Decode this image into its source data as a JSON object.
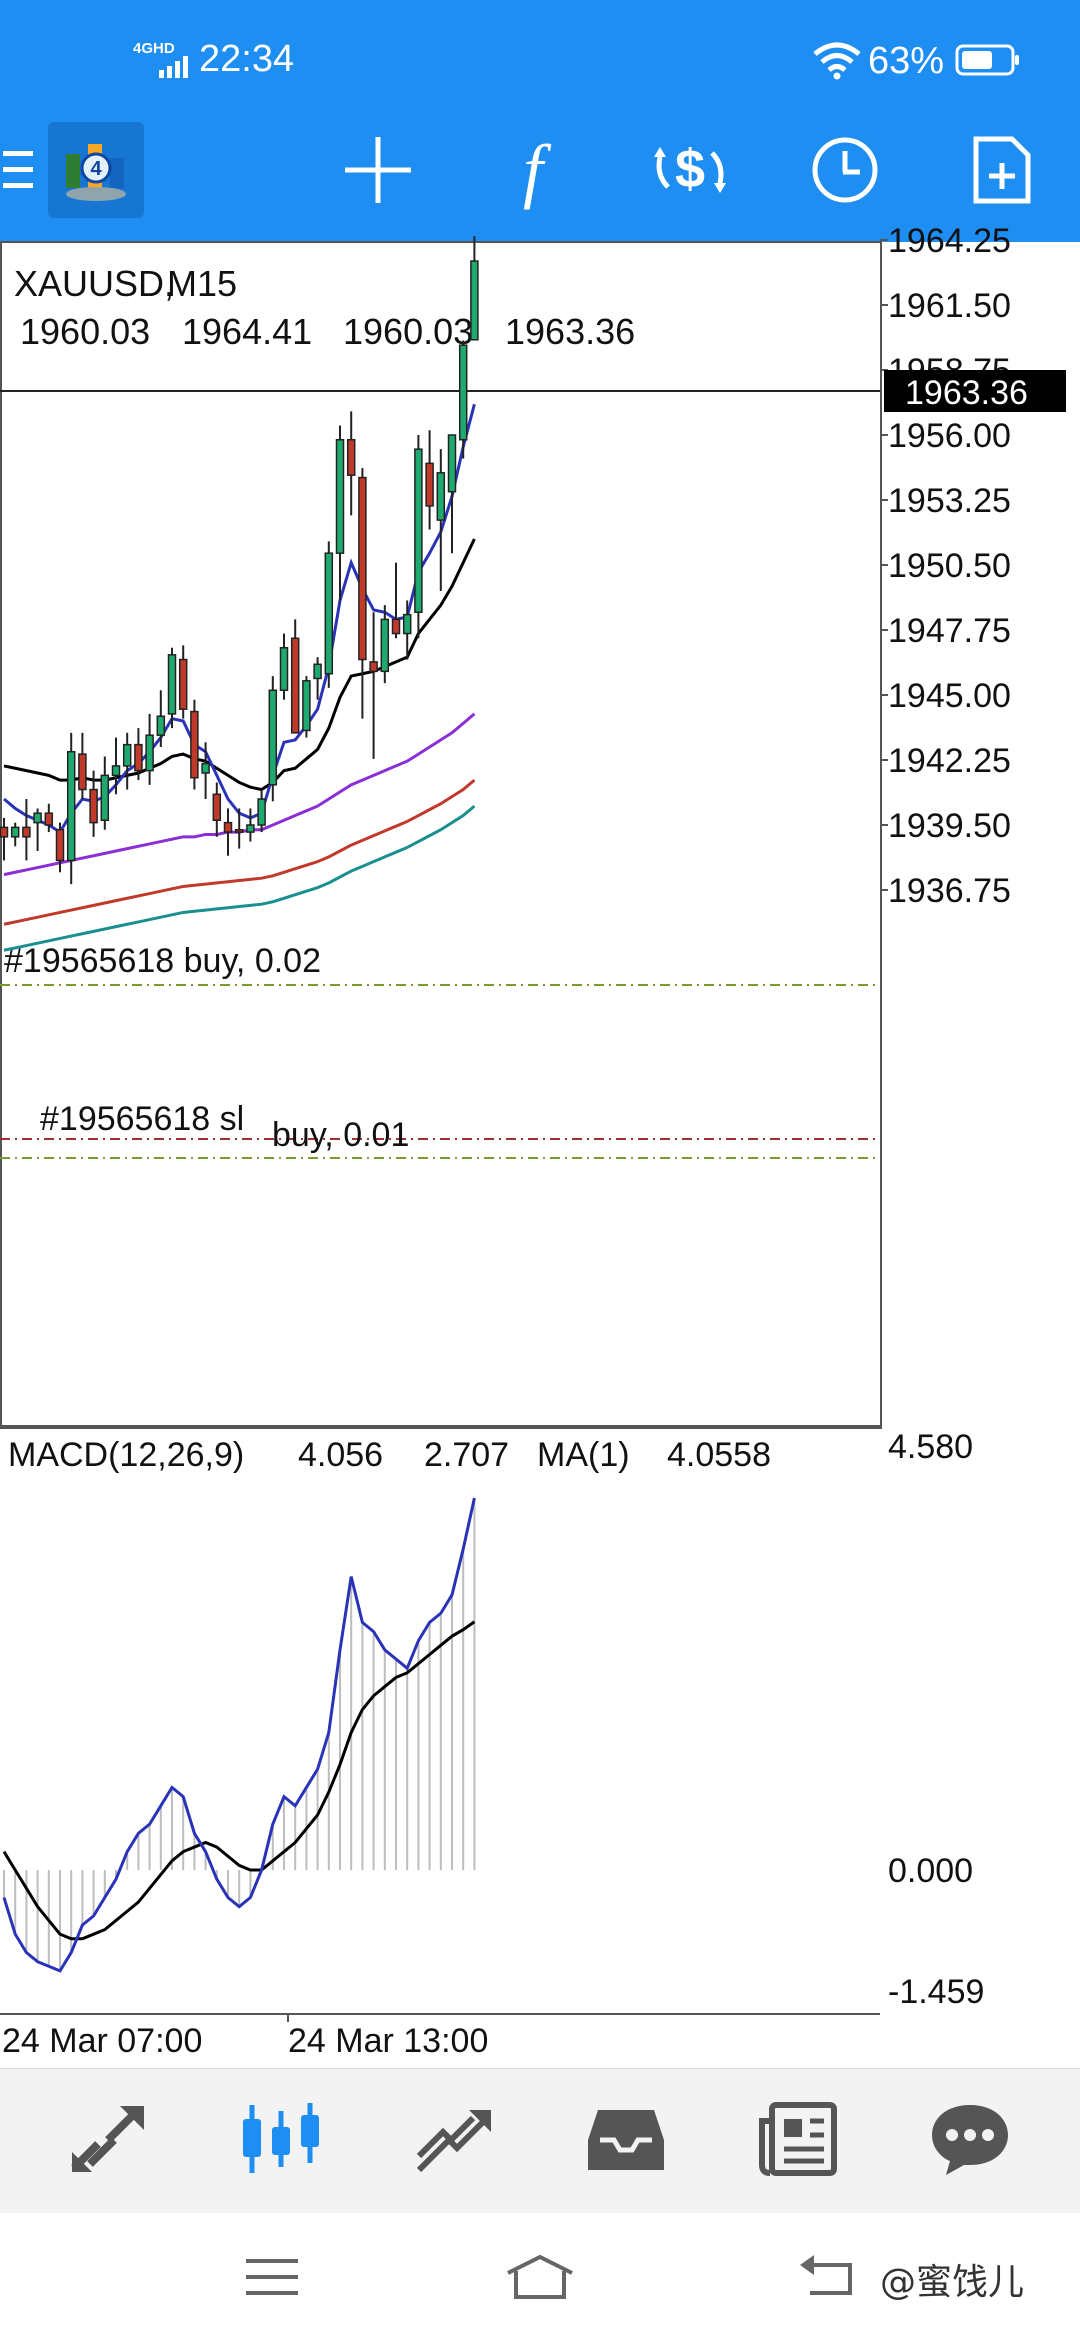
{
  "status_bar": {
    "network": "4GHD",
    "time": "22:34",
    "battery": "63%"
  },
  "toolbar": {
    "icons": [
      "menu-icon",
      "metatrader-logo",
      "crosshair-icon",
      "indicators-icon",
      "trade-icon",
      "timeframe-icon",
      "new-chart-icon"
    ],
    "indicator_glyph": "f"
  },
  "chart": {
    "symbol": "XAUUSD,",
    "timeframe": "M15",
    "ohlc": [
      "1960.03",
      "1964.41",
      "1960.03",
      "1963.36"
    ],
    "current_price": "1963.36",
    "price_ticks": [
      "1964.25",
      "1961.50",
      "1958.75",
      "1956.00",
      "1953.25",
      "1950.50",
      "1947.75",
      "1945.00",
      "1942.25",
      "1939.50",
      "1936.75"
    ],
    "order_buy_label": "#19565618  buy, 0.02",
    "order_sl_label": "#19565618  sl",
    "order_sell_label": "buy, 0.01",
    "macd_label": "MACD(12,26,9)",
    "macd_main": "4.056",
    "macd_signal": "2.707",
    "macd_ma_label": "MA(1)",
    "macd_ma_value": "4.0558",
    "macd_ticks": [
      "4.580",
      "0.000",
      "-1.459"
    ],
    "time_labels": [
      "24  Mar  07:00",
      "24  Mar  13:00"
    ],
    "colors": {
      "bull": "#1eaa6e",
      "bear": "#c0392b",
      "ma_fast": "#2a33b8",
      "ma_slow": "#000000",
      "ma_purple": "#8a2fd6",
      "ma_red": "#c0392b",
      "ma_teal": "#1a8f8f",
      "order_line": "#7a9a2a",
      "sl_line": "#a03030"
    }
  },
  "bottom_nav": {
    "items": [
      "quotes-icon",
      "chart-icon",
      "trade-icon",
      "history-icon",
      "news-icon",
      "messages-icon"
    ]
  },
  "system_nav": {
    "watermark": "@蜜饯儿"
  }
}
